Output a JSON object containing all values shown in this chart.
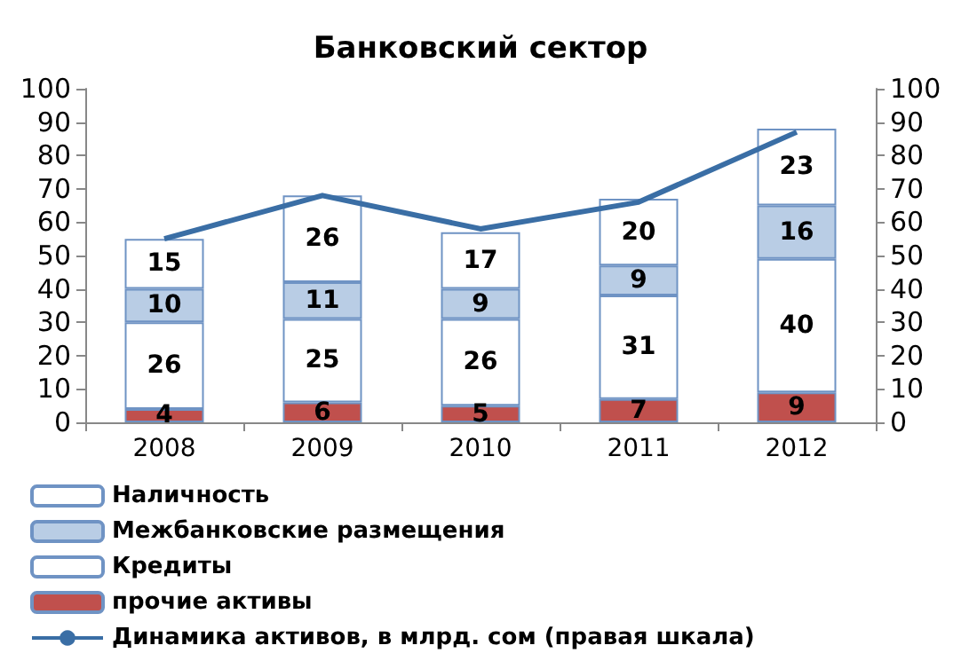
{
  "chart_data": {
    "type": "bar",
    "title": "Банковский сектор",
    "categories": [
      "2008",
      "2009",
      "2010",
      "2011",
      "2012"
    ],
    "stacked": true,
    "series": [
      {
        "name": "прочие активы",
        "color": "#c0504d",
        "values": [
          4,
          6,
          5,
          7,
          9
        ],
        "value_labels": [
          "4",
          "6",
          "5",
          "7",
          "9"
        ]
      },
      {
        "name": "Кредиты",
        "color": "#ffffff",
        "values": [
          26,
          25,
          26,
          31,
          40
        ],
        "value_labels": [
          "26",
          "25",
          "26",
          "31",
          "40"
        ]
      },
      {
        "name": "Межбанковские размещения",
        "color": "#b9cde5",
        "values": [
          10,
          11,
          9,
          9,
          16
        ],
        "value_labels": [
          "10",
          "11",
          "9",
          "9",
          "16"
        ]
      },
      {
        "name": "Наличность",
        "color": "#ffffff",
        "values": [
          15,
          26,
          17,
          20,
          23
        ],
        "value_labels": [
          "15",
          "26",
          "17",
          "20",
          "23"
        ]
      },
      {
        "name": "Динамика активов, в млрд. сом (правая шкала)",
        "type": "line",
        "axis": "y2",
        "color": "#3a6ea5",
        "values": [
          55,
          68,
          58,
          66,
          87
        ]
      }
    ],
    "ylim": [
      0,
      100
    ],
    "yticks": [
      0,
      10,
      20,
      30,
      40,
      50,
      60,
      70,
      80,
      90,
      100
    ],
    "y2lim": [
      0,
      100
    ],
    "y2ticks": [
      0,
      10,
      20,
      30,
      40,
      50,
      60,
      70,
      80,
      90,
      100
    ],
    "grid": false,
    "legend": "bottom",
    "marker": "none"
  }
}
